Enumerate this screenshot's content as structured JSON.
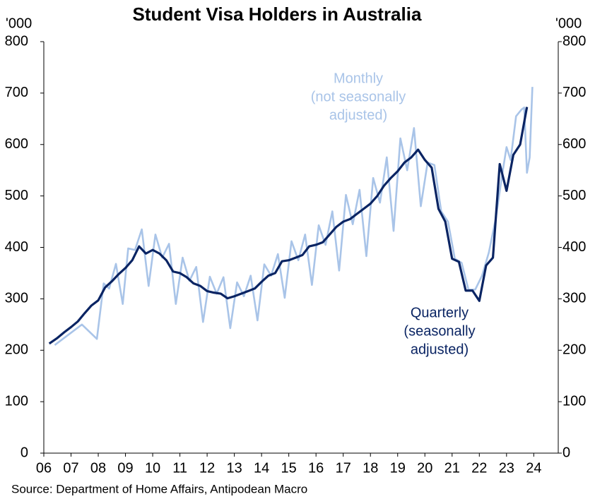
{
  "chart_data": {
    "type": "line",
    "title": "Student Visa Holders in Australia",
    "y_unit": "'000",
    "y2_unit": "'000",
    "source": "Source: Department of Home Affairs, Antipodean Macro",
    "xlim": [
      2006,
      2024.9
    ],
    "xticks": [
      {
        "value": 2006,
        "label": "06"
      },
      {
        "value": 2007,
        "label": "07"
      },
      {
        "value": 2008,
        "label": "08"
      },
      {
        "value": 2009,
        "label": "09"
      },
      {
        "value": 2010,
        "label": "10"
      },
      {
        "value": 2011,
        "label": "11"
      },
      {
        "value": 2012,
        "label": "12"
      },
      {
        "value": 2013,
        "label": "13"
      },
      {
        "value": 2014,
        "label": "14"
      },
      {
        "value": 2015,
        "label": "15"
      },
      {
        "value": 2016,
        "label": "16"
      },
      {
        "value": 2017,
        "label": "17"
      },
      {
        "value": 2018,
        "label": "18"
      },
      {
        "value": 2019,
        "label": "19"
      },
      {
        "value": 2020,
        "label": "20"
      },
      {
        "value": 2021,
        "label": "21"
      },
      {
        "value": 2022,
        "label": "22"
      },
      {
        "value": 2023,
        "label": "23"
      },
      {
        "value": 2024,
        "label": "24"
      }
    ],
    "ylim": [
      0,
      800
    ],
    "yticks": [
      0,
      100,
      200,
      300,
      400,
      500,
      600,
      700,
      800
    ],
    "y2lim": [
      0,
      800
    ],
    "y2ticks": [
      0,
      100,
      200,
      300,
      400,
      500,
      600,
      700,
      800
    ],
    "series": [
      {
        "color": "#a9c4e8",
        "x": [
          2006.4,
          2007.4,
          2007.95,
          2008.2,
          2008.4,
          2008.65,
          2008.9,
          2009.1,
          2009.35,
          2009.6,
          2009.85,
          2010.1,
          2010.35,
          2010.6,
          2010.85,
          2011.1,
          2011.35,
          2011.6,
          2011.85,
          2012.1,
          2012.35,
          2012.6,
          2012.85,
          2013.1,
          2013.35,
          2013.6,
          2013.85,
          2014.1,
          2014.35,
          2014.6,
          2014.85,
          2015.1,
          2015.35,
          2015.6,
          2015.85,
          2016.1,
          2016.35,
          2016.6,
          2016.85,
          2017.1,
          2017.35,
          2017.6,
          2017.85,
          2018.1,
          2018.35,
          2018.6,
          2018.85,
          2019.1,
          2019.35,
          2019.6,
          2019.85,
          2020.1,
          2020.35,
          2020.6,
          2020.85,
          2021.1,
          2021.35,
          2021.6,
          2021.85,
          2022.1,
          2022.35,
          2022.6,
          2022.85,
          2023.0,
          2023.15,
          2023.35,
          2023.55,
          2023.65,
          2023.75,
          2023.85,
          2023.95
        ],
        "values": [
          210,
          250,
          222,
          330,
          320,
          368,
          290,
          398,
          395,
          435,
          325,
          425,
          380,
          407,
          290,
          380,
          335,
          362,
          255,
          343,
          310,
          342,
          243,
          332,
          305,
          345,
          258,
          367,
          345,
          387,
          302,
          412,
          375,
          425,
          327,
          443,
          405,
          470,
          355,
          502,
          445,
          512,
          383,
          535,
          487,
          575,
          432,
          612,
          550,
          632,
          480,
          565,
          560,
          470,
          450,
          378,
          370,
          318,
          318,
          345,
          390,
          455,
          545,
          595,
          570,
          655,
          668,
          672,
          545,
          575,
          712
        ]
      },
      {
        "color": "#0a2463",
        "x": [
          2006.2,
          2006.5,
          2006.75,
          2007.0,
          2007.25,
          2007.5,
          2007.75,
          2008.0,
          2008.25,
          2008.5,
          2008.75,
          2009.0,
          2009.25,
          2009.5,
          2009.75,
          2010.0,
          2010.25,
          2010.5,
          2010.75,
          2011.0,
          2011.25,
          2011.5,
          2011.75,
          2012.0,
          2012.25,
          2012.5,
          2012.75,
          2013.0,
          2013.25,
          2013.5,
          2013.75,
          2014.0,
          2014.25,
          2014.5,
          2014.75,
          2015.0,
          2015.25,
          2015.5,
          2015.75,
          2016.0,
          2016.25,
          2016.5,
          2016.75,
          2017.0,
          2017.25,
          2017.5,
          2017.75,
          2018.0,
          2018.25,
          2018.5,
          2018.75,
          2019.0,
          2019.25,
          2019.5,
          2019.75,
          2020.0,
          2020.25,
          2020.5,
          2020.75,
          2021.0,
          2021.25,
          2021.5,
          2021.75,
          2022.0,
          2022.25,
          2022.5,
          2022.75,
          2023.0,
          2023.25,
          2023.5,
          2023.75
        ],
        "values": [
          213,
          224,
          235,
          245,
          256,
          272,
          287,
          297,
          322,
          334,
          348,
          360,
          375,
          402,
          388,
          395,
          388,
          375,
          353,
          350,
          342,
          330,
          325,
          315,
          312,
          310,
          301,
          305,
          310,
          315,
          320,
          333,
          345,
          350,
          373,
          375,
          380,
          385,
          402,
          405,
          410,
          425,
          440,
          450,
          455,
          465,
          475,
          485,
          500,
          520,
          535,
          548,
          565,
          575,
          590,
          570,
          555,
          475,
          450,
          378,
          372,
          316,
          316,
          296,
          365,
          380,
          562,
          510,
          580,
          600,
          673
        ]
      }
    ],
    "annotations": [
      {
        "series": 0,
        "lines": [
          "Monthly",
          "(not seasonally",
          "adjusted)"
        ]
      },
      {
        "series": 1,
        "lines": [
          "Quarterly",
          "(seasonally",
          "adjusted)"
        ]
      }
    ]
  }
}
